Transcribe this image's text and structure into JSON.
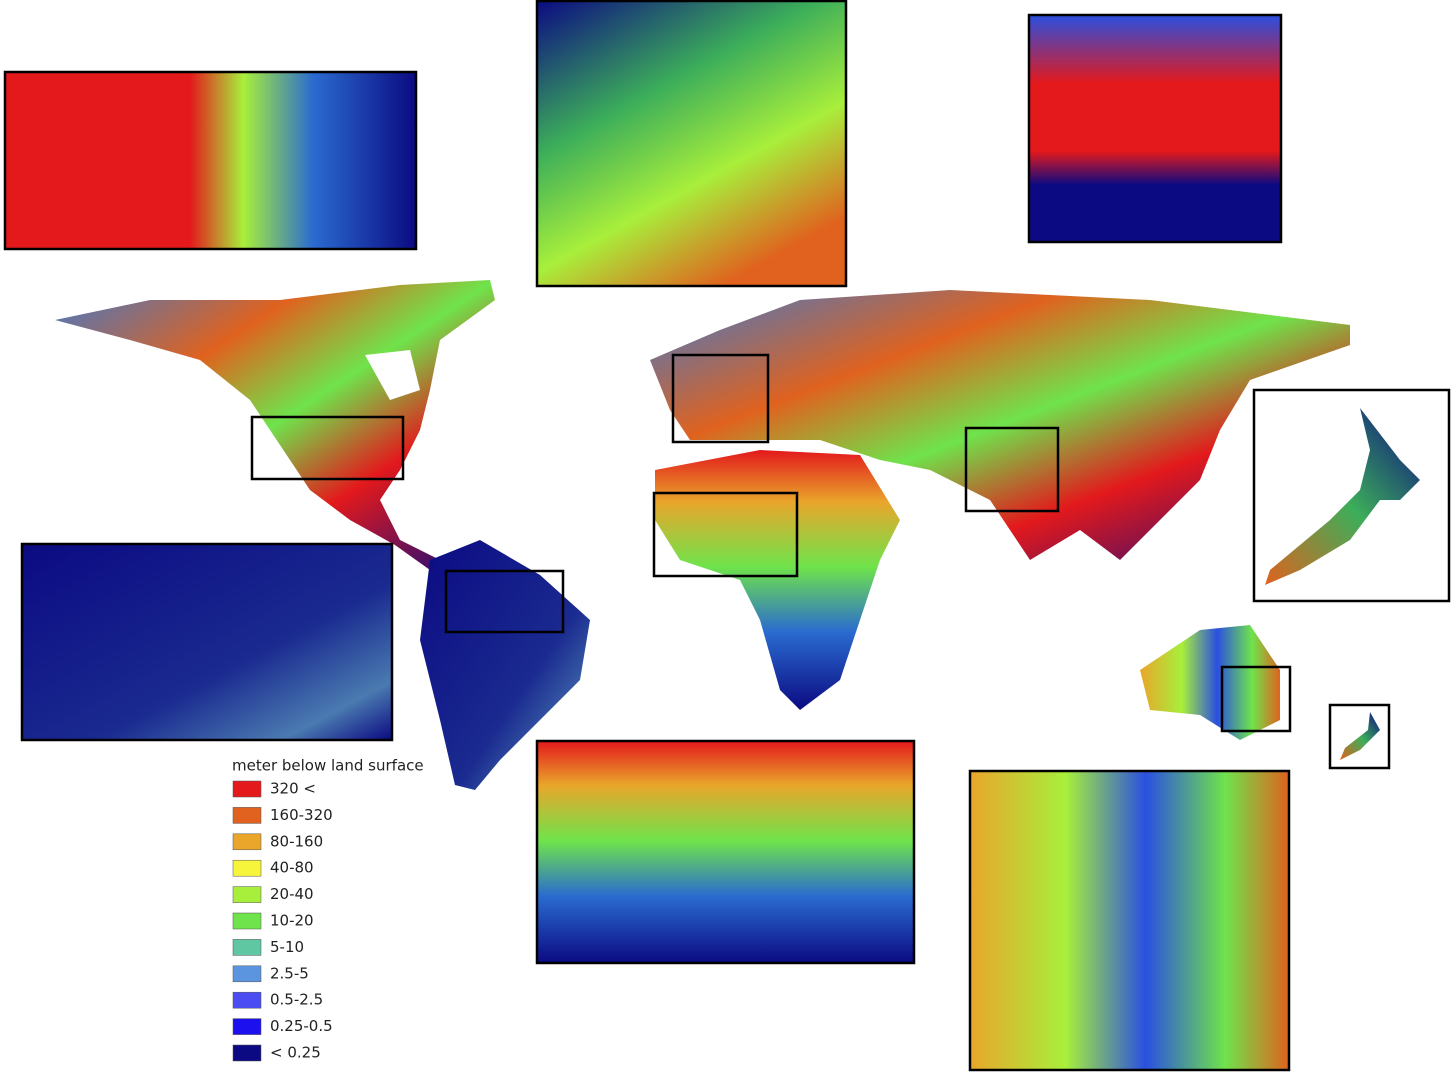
{
  "legend": {
    "title": "meter below land surface",
    "items": [
      {
        "label": "320 <",
        "color": "#e3191c"
      },
      {
        "label": "160-320",
        "color": "#e0621e"
      },
      {
        "label": "80-160",
        "color": "#e9a62b"
      },
      {
        "label": "40-80",
        "color": "#f6f53c"
      },
      {
        "label": "20-40",
        "color": "#a8ef3b"
      },
      {
        "label": "10-20",
        "color": "#6fe34b"
      },
      {
        "label": "5-10",
        "color": "#5fc7a1"
      },
      {
        "label": "2.5-5",
        "color": "#5b95df"
      },
      {
        "label": "0.5-2.5",
        "color": "#4b4cf1"
      },
      {
        "label": "0.25-0.5",
        "color": "#1c11ee"
      },
      {
        "label": "< 0.25",
        "color": "#0b0a82"
      }
    ]
  }
}
